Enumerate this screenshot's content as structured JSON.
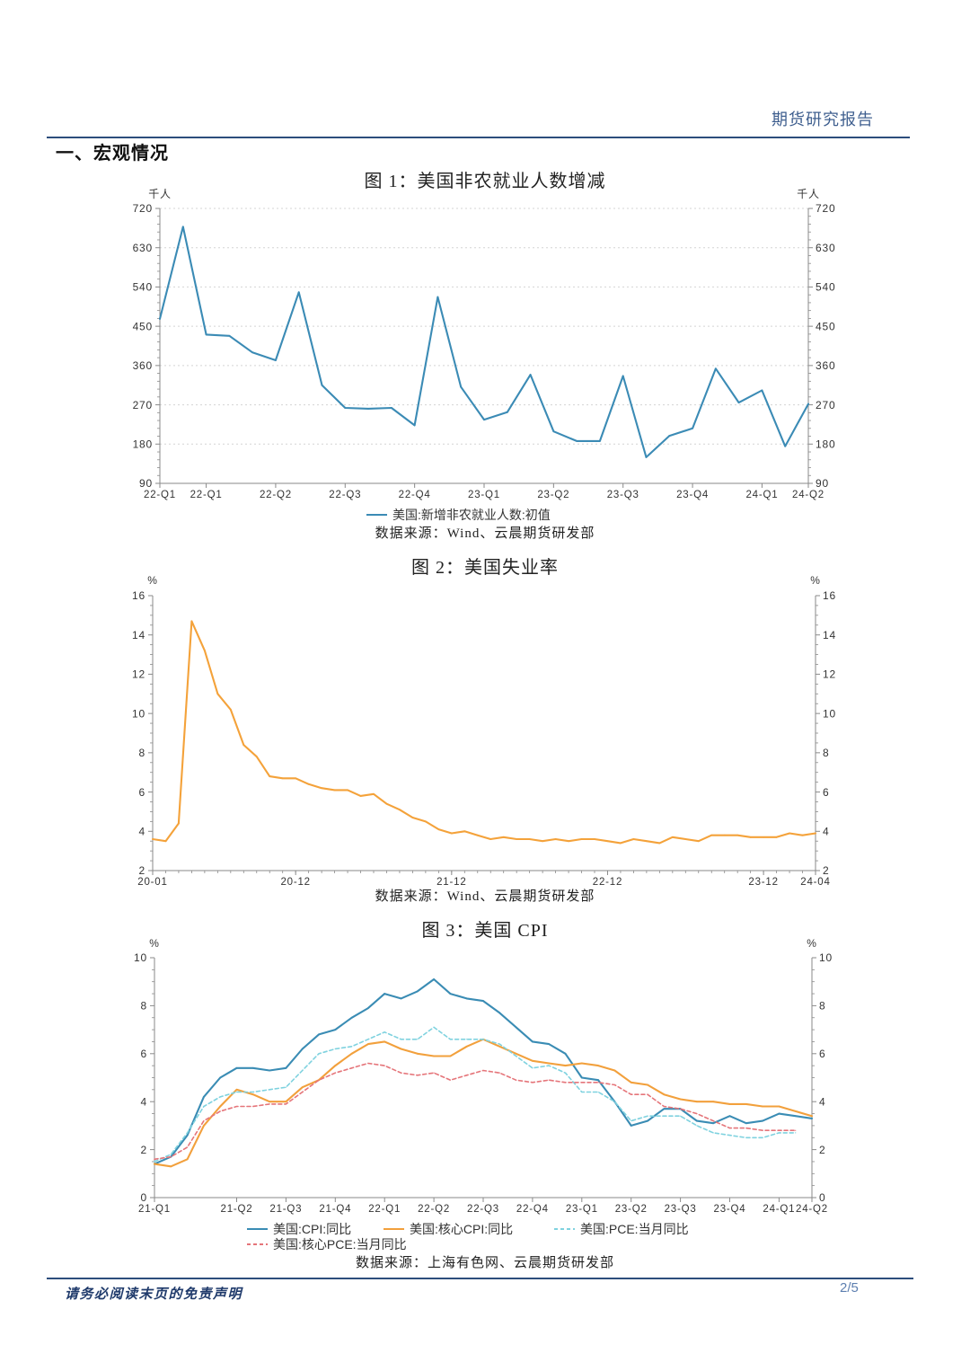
{
  "header": {
    "report_type": "期货研究报告"
  },
  "section": {
    "title": "一、宏观情况"
  },
  "footer": {
    "disclaimer": "请务必阅读末页的免责声明",
    "page": "2/5"
  },
  "colors": {
    "rule": "#2d4d7c",
    "axis": "#8a8a8a",
    "grid": "#d4d4d4",
    "label": "#333333"
  },
  "chart_data": [
    {
      "type": "line",
      "title": "图 1：美国非农就业人数增减",
      "unit_left": "千人",
      "unit_right": "千人",
      "ylim": [
        90,
        720
      ],
      "yticks": [
        720,
        630,
        540,
        450,
        360,
        270,
        180,
        90
      ],
      "grid": true,
      "x_ticks": [
        {
          "label": "22-Q1",
          "period": 0
        },
        {
          "label": "22-Q1",
          "period": 2
        },
        {
          "label": "22-Q2",
          "period": 5
        },
        {
          "label": "22-Q3",
          "period": 8
        },
        {
          "label": "22-Q4",
          "period": 11
        },
        {
          "label": "23-Q1",
          "period": 14
        },
        {
          "label": "23-Q2",
          "period": 17
        },
        {
          "label": "23-Q3",
          "period": 20
        },
        {
          "label": "23-Q4",
          "period": 23
        },
        {
          "label": "24-Q1",
          "period": 26
        },
        {
          "label": "24-Q2",
          "period": 28
        }
      ],
      "series": [
        {
          "name": "美国:新增非农就业人数:初值",
          "color": "#3b8bb5",
          "style": "solid",
          "values": [
            467,
            678,
            431,
            428,
            390,
            372,
            528,
            315,
            263,
            261,
            263,
            223,
            517,
            311,
            236,
            253,
            339,
            209,
            187,
            187,
            336,
            150,
            199,
            216,
            353,
            275,
            303,
            175,
            272
          ]
        }
      ],
      "source": "数据来源：Wind、云晨期货研发部"
    },
    {
      "type": "line",
      "title": "图 2：美国失业率",
      "unit_left": "%",
      "unit_right": "%",
      "ylim": [
        2,
        16
      ],
      "yticks": [
        16,
        14,
        12,
        10,
        8,
        6,
        4,
        2
      ],
      "grid": false,
      "x_ticks": [
        {
          "label": "20-01",
          "period": 0
        },
        {
          "label": "20-12",
          "period": 11
        },
        {
          "label": "21-12",
          "period": 23
        },
        {
          "label": "22-12",
          "period": 35
        },
        {
          "label": "23-12",
          "period": 47
        },
        {
          "label": "24-04",
          "period": 51
        }
      ],
      "series": [
        {
          "color": "#f4a23a",
          "style": "solid",
          "values": [
            3.6,
            3.5,
            4.4,
            14.7,
            13.2,
            11.0,
            10.2,
            8.4,
            7.8,
            6.8,
            6.7,
            6.7,
            6.4,
            6.2,
            6.1,
            6.1,
            5.8,
            5.9,
            5.4,
            5.1,
            4.7,
            4.5,
            4.1,
            3.9,
            4.0,
            3.8,
            3.6,
            3.7,
            3.6,
            3.6,
            3.5,
            3.6,
            3.5,
            3.6,
            3.6,
            3.5,
            3.4,
            3.6,
            3.5,
            3.4,
            3.7,
            3.6,
            3.5,
            3.8,
            3.8,
            3.8,
            3.7,
            3.7,
            3.7,
            3.9,
            3.8,
            3.9
          ]
        }
      ],
      "source": "数据来源：Wind、云晨期货研发部"
    },
    {
      "type": "line",
      "title": "图 3：美国 CPI",
      "unit_left": "%",
      "unit_right": "%",
      "ylim": [
        0,
        10
      ],
      "yticks": [
        10,
        8,
        6,
        4,
        2,
        0
      ],
      "grid": false,
      "x_ticks": [
        {
          "label": "21-Q1",
          "period": 0
        },
        {
          "label": "21-Q2",
          "period": 5
        },
        {
          "label": "21-Q3",
          "period": 8
        },
        {
          "label": "21-Q4",
          "period": 11
        },
        {
          "label": "22-Q1",
          "period": 14
        },
        {
          "label": "22-Q2",
          "period": 17
        },
        {
          "label": "22-Q3",
          "period": 20
        },
        {
          "label": "22-Q4",
          "period": 23
        },
        {
          "label": "23-Q1",
          "period": 26
        },
        {
          "label": "23-Q2",
          "period": 29
        },
        {
          "label": "23-Q3",
          "period": 32
        },
        {
          "label": "23-Q4",
          "period": 35
        },
        {
          "label": "24-Q1",
          "period": 38
        },
        {
          "label": "24-Q2",
          "period": 40
        }
      ],
      "series": [
        {
          "name": "美国:CPI:同比",
          "color": "#3a8cb4",
          "style": "solid",
          "values": [
            1.4,
            1.7,
            2.6,
            4.2,
            5.0,
            5.4,
            5.4,
            5.3,
            5.4,
            6.2,
            6.8,
            7.0,
            7.5,
            7.9,
            8.5,
            8.3,
            8.6,
            9.1,
            8.5,
            8.3,
            8.2,
            7.7,
            7.1,
            6.5,
            6.4,
            6.0,
            5.0,
            4.9,
            4.0,
            3.0,
            3.2,
            3.7,
            3.7,
            3.2,
            3.1,
            3.4,
            3.1,
            3.2,
            3.5,
            3.4,
            3.3
          ]
        },
        {
          "name": "美国:核心CPI:同比",
          "color": "#f2a03c",
          "style": "solid",
          "values": [
            1.4,
            1.3,
            1.6,
            3.0,
            3.8,
            4.5,
            4.3,
            4.0,
            4.0,
            4.6,
            4.9,
            5.5,
            6.0,
            6.4,
            6.5,
            6.2,
            6.0,
            5.9,
            5.9,
            6.3,
            6.6,
            6.3,
            6.0,
            5.7,
            5.6,
            5.5,
            5.6,
            5.5,
            5.3,
            4.8,
            4.7,
            4.3,
            4.1,
            4.0,
            4.0,
            3.9,
            3.9,
            3.8,
            3.8,
            3.6,
            3.4
          ]
        },
        {
          "name": "美国:PCE:当月同比",
          "color": "#7fd2df",
          "style": "dashed",
          "values": [
            1.5,
            1.8,
            2.7,
            3.8,
            4.2,
            4.4,
            4.4,
            4.5,
            4.6,
            5.3,
            6.0,
            6.2,
            6.3,
            6.6,
            6.9,
            6.6,
            6.6,
            7.1,
            6.6,
            6.6,
            6.6,
            6.4,
            5.9,
            5.4,
            5.5,
            5.2,
            4.4,
            4.4,
            4.0,
            3.2,
            3.4,
            3.4,
            3.4,
            3.0,
            2.7,
            2.6,
            2.5,
            2.5,
            2.7,
            2.7
          ]
        },
        {
          "name": "美国:核心PCE:当月同比",
          "color": "#e5757a",
          "style": "dashed",
          "values": [
            1.6,
            1.7,
            2.1,
            3.2,
            3.6,
            3.8,
            3.8,
            3.9,
            3.9,
            4.4,
            4.9,
            5.2,
            5.4,
            5.6,
            5.5,
            5.2,
            5.1,
            5.2,
            4.9,
            5.1,
            5.3,
            5.2,
            4.9,
            4.8,
            4.9,
            4.8,
            4.8,
            4.8,
            4.7,
            4.3,
            4.3,
            3.8,
            3.7,
            3.5,
            3.2,
            2.9,
            2.9,
            2.8,
            2.8,
            2.8
          ]
        }
      ],
      "source": "数据来源：上海有色网、云晨期货研发部"
    }
  ]
}
